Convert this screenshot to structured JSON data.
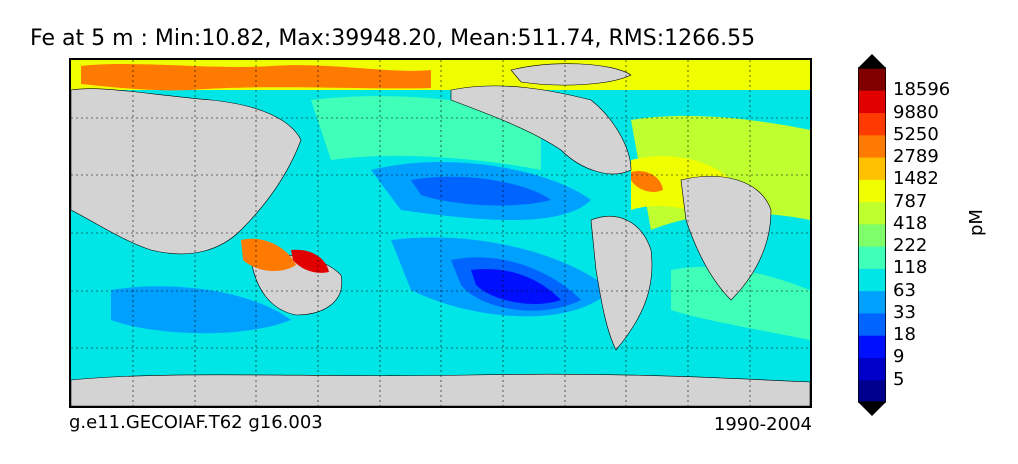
{
  "title": "Fe at 5 m : Min:10.82, Max:39948.20, Mean:511.74, RMS:1266.55",
  "caption_left": "g.e11.GECOIAF.T62 g16.003",
  "caption_right": "1990-2004",
  "colorbar": {
    "unit": "pM",
    "labels": [
      "18596",
      "9880",
      "5250",
      "2789",
      "1482",
      "787",
      "418",
      "222",
      "118",
      "63",
      "33",
      "18",
      "9",
      "5"
    ],
    "colors": [
      "#00008f",
      "#0000c8",
      "#0010ff",
      "#0064ff",
      "#00a0ff",
      "#00e6e6",
      "#40ffb8",
      "#7fff6a",
      "#bfff30",
      "#f0ff00",
      "#ffc000",
      "#ff7a00",
      "#ff3a00",
      "#e00000",
      "#800000"
    ],
    "under_color": "#000000",
    "over_color": "#000000"
  },
  "map": {
    "land_color": "#d3d3d3",
    "grid": true,
    "projection": "global lat-lon",
    "fe_levels_shown": [
      "low (blue) in subtropical gyres and central Pacific",
      "high (orange/red) near continents"
    ]
  }
}
